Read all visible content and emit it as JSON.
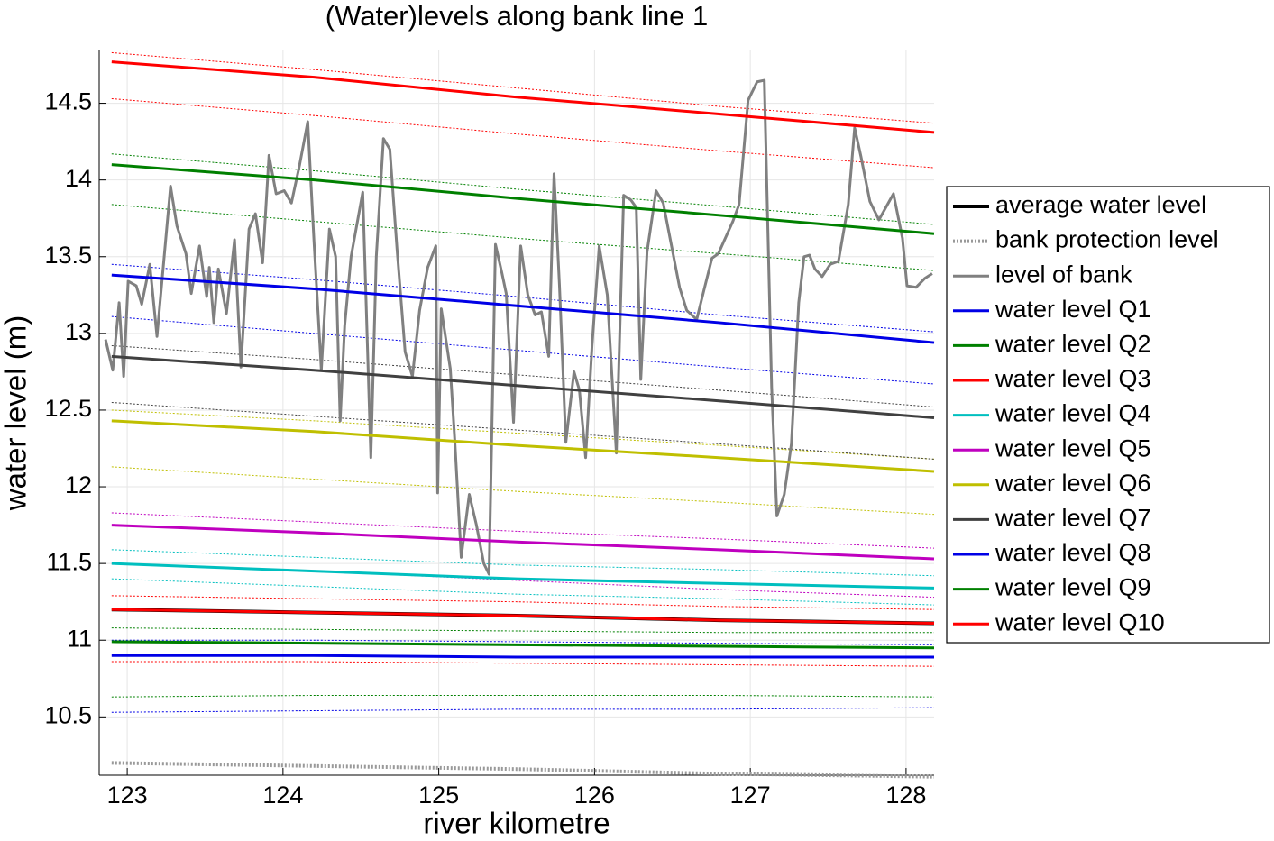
{
  "chart_data": {
    "type": "line",
    "title": "(Water)levels along bank line 1",
    "xlabel": "river kilometre",
    "ylabel": "water level (m)",
    "xlim": [
      122.82,
      128.18
    ],
    "ylim": [
      10.12,
      14.85
    ],
    "xticks": [
      123,
      124,
      125,
      126,
      127,
      128
    ],
    "yticks": [
      10.5,
      11,
      11.5,
      12,
      12.5,
      13,
      13.5,
      14,
      14.5
    ],
    "grid": true,
    "legend": "outside right",
    "x": [
      122.9,
      124.2,
      125.5,
      126.8,
      128.18
    ],
    "series": [
      {
        "name": "average water level",
        "color": "#000000",
        "linewidth": 4,
        "values": [
          11.2,
          11.18,
          11.16,
          11.13,
          11.11
        ]
      },
      {
        "name": "bank protection level",
        "color": "#999999",
        "linewidth": 4,
        "linestyle": "dotted",
        "values": [
          10.2,
          10.18,
          10.16,
          10.13,
          10.11
        ]
      },
      {
        "name": "level of bank",
        "color": "#808080",
        "linewidth": 3,
        "x": [
          122.861,
          122.907,
          122.948,
          122.977,
          123.006,
          123.058,
          123.093,
          123.145,
          123.191,
          123.278,
          123.319,
          123.377,
          123.411,
          123.464,
          123.51,
          123.527,
          123.556,
          123.585,
          123.637,
          123.689,
          123.73,
          123.782,
          123.823,
          123.869,
          123.91,
          123.956,
          124.008,
          124.054,
          124.107,
          124.159,
          124.199,
          124.246,
          124.298,
          124.338,
          124.367,
          124.396,
          124.437,
          124.512,
          124.564,
          124.599,
          124.645,
          124.686,
          124.732,
          124.784,
          124.831,
          124.877,
          124.929,
          124.981,
          124.993,
          125.016,
          125.074,
          125.103,
          125.144,
          125.196,
          125.242,
          125.289,
          125.323,
          125.364,
          125.404,
          125.433,
          125.48,
          125.526,
          125.572,
          125.619,
          125.659,
          125.706,
          125.74,
          125.775,
          125.816,
          125.868,
          125.903,
          125.943,
          125.984,
          126.03,
          126.082,
          126.14,
          126.187,
          126.233,
          126.268,
          126.297,
          126.337,
          126.395,
          126.441,
          126.546,
          126.592,
          126.656,
          126.702,
          126.754,
          126.795,
          126.888,
          126.928,
          126.986,
          127.044,
          127.09,
          127.137,
          127.171,
          127.218,
          127.264,
          127.311,
          127.345,
          127.38,
          127.415,
          127.461,
          127.513,
          127.566,
          127.629,
          127.67,
          127.711,
          127.768,
          127.826,
          127.919,
          127.977,
          128.006,
          128.064,
          128.122,
          128.168
        ],
        "values": [
          12.96,
          12.76,
          13.2,
          12.72,
          13.34,
          13.31,
          13.19,
          13.45,
          12.98,
          13.96,
          13.7,
          13.52,
          13.26,
          13.57,
          13.24,
          13.43,
          13.07,
          13.42,
          13.13,
          13.61,
          12.78,
          13.68,
          13.78,
          13.46,
          14.16,
          13.91,
          13.93,
          13.85,
          14.1,
          14.38,
          13.6,
          12.76,
          13.68,
          13.5,
          12.43,
          13.05,
          13.5,
          13.92,
          12.19,
          13.5,
          14.27,
          14.2,
          13.55,
          12.88,
          12.72,
          13.15,
          13.43,
          13.57,
          11.96,
          13.16,
          12.77,
          12.3,
          11.54,
          11.95,
          11.75,
          11.5,
          11.43,
          13.58,
          13.4,
          13.26,
          12.42,
          13.57,
          13.25,
          13.12,
          13.14,
          12.85,
          14.04,
          13.31,
          12.29,
          12.75,
          12.63,
          12.19,
          12.92,
          13.57,
          13.25,
          12.22,
          13.9,
          13.87,
          13.82,
          12.7,
          13.53,
          13.93,
          13.85,
          13.3,
          13.15,
          13.09,
          13.28,
          13.49,
          13.52,
          13.73,
          13.84,
          14.52,
          14.64,
          14.65,
          12.65,
          11.81,
          11.95,
          12.28,
          13.2,
          13.5,
          13.51,
          13.42,
          13.37,
          13.45,
          13.47,
          13.84,
          14.34,
          14.15,
          13.86,
          13.74,
          13.91,
          13.62,
          13.31,
          13.3,
          13.36,
          13.39
        ]
      },
      {
        "name": "water level Q1",
        "color": "#0000e6",
        "linewidth": 3,
        "values": [
          13.38,
          13.29,
          13.18,
          13.07,
          12.94
        ],
        "upper": [
          13.45,
          13.35,
          13.24,
          13.12,
          13.01
        ],
        "lower": [
          13.11,
          13.0,
          12.89,
          12.78,
          12.67
        ]
      },
      {
        "name": "water level Q2",
        "color": "#008000",
        "linewidth": 3,
        "values": [
          14.1,
          14.0,
          13.88,
          13.77,
          13.65
        ],
        "upper": [
          14.17,
          14.06,
          13.94,
          13.83,
          13.71
        ],
        "lower": [
          13.84,
          13.73,
          13.62,
          13.52,
          13.41
        ]
      },
      {
        "name": "water level Q3",
        "color": "#ff0000",
        "linewidth": 3,
        "values": [
          14.77,
          14.67,
          14.54,
          14.43,
          14.31
        ],
        "upper": [
          14.83,
          14.72,
          14.6,
          14.48,
          14.37
        ],
        "lower": [
          14.53,
          14.42,
          14.3,
          14.19,
          14.08
        ]
      },
      {
        "name": "water level Q4",
        "color": "#00bfbf",
        "linewidth": 3,
        "values": [
          11.5,
          11.45,
          11.4,
          11.37,
          11.34
        ],
        "upper": [
          11.59,
          11.54,
          11.49,
          11.46,
          11.42
        ],
        "lower": [
          11.4,
          11.35,
          11.3,
          11.27,
          11.23
        ]
      },
      {
        "name": "water level Q5",
        "color": "#bf00bf",
        "linewidth": 3,
        "values": [
          11.75,
          11.7,
          11.64,
          11.59,
          11.53
        ],
        "upper": [
          11.83,
          11.77,
          11.71,
          11.66,
          11.6
        ],
        "lower": [
          11.5,
          11.45,
          11.39,
          11.33,
          11.28
        ]
      },
      {
        "name": "water level Q6",
        "color": "#bfbf00",
        "linewidth": 3,
        "values": [
          12.43,
          12.36,
          12.27,
          12.19,
          12.1
        ],
        "upper": [
          12.5,
          12.43,
          12.35,
          12.27,
          12.18
        ],
        "lower": [
          12.13,
          12.05,
          11.97,
          11.9,
          11.82
        ]
      },
      {
        "name": "water level Q7",
        "color": "#404040",
        "linewidth": 3,
        "values": [
          12.85,
          12.76,
          12.66,
          12.56,
          12.45
        ],
        "upper": [
          12.92,
          12.83,
          12.73,
          12.63,
          12.52
        ],
        "lower": [
          12.55,
          12.46,
          12.37,
          12.28,
          12.18
        ]
      },
      {
        "name": "water level Q8",
        "color": "#0000e6",
        "linewidth": 3,
        "values": [
          10.9,
          10.9,
          10.89,
          10.89,
          10.89
        ],
        "upper": [
          11.0,
          11.0,
          10.99,
          10.98,
          10.97
        ],
        "lower": [
          10.53,
          10.54,
          10.55,
          10.55,
          10.56
        ]
      },
      {
        "name": "water level Q9",
        "color": "#008000",
        "linewidth": 3,
        "values": [
          10.99,
          10.98,
          10.97,
          10.96,
          10.95
        ],
        "upper": [
          11.08,
          11.07,
          11.06,
          11.05,
          11.05
        ],
        "lower": [
          10.63,
          10.64,
          10.64,
          10.64,
          10.63
        ]
      },
      {
        "name": "water level Q10",
        "color": "#ff0000",
        "linewidth": 3,
        "values": [
          11.2,
          11.18,
          11.16,
          11.13,
          11.11
        ],
        "upper": [
          11.29,
          11.27,
          11.25,
          11.22,
          11.2
        ],
        "lower": [
          10.86,
          10.86,
          10.85,
          10.84,
          10.83
        ]
      }
    ]
  }
}
